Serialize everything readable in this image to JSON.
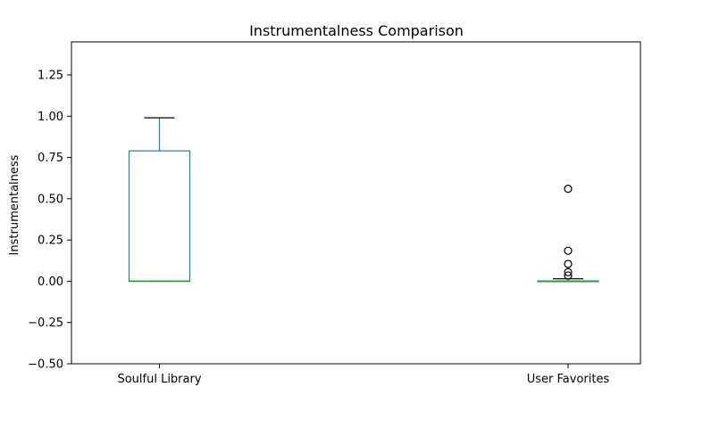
{
  "chart_data": {
    "type": "box",
    "title": "Instrumentalness Comparison",
    "xlabel": "",
    "ylabel": "Instrumentalness",
    "ylim": [
      -0.5,
      1.45
    ],
    "yticks": [
      -0.5,
      -0.25,
      0.0,
      0.25,
      0.5,
      0.75,
      1.0,
      1.25
    ],
    "ytick_labels": [
      "−0.50",
      "−0.25",
      "0.00",
      "0.25",
      "0.50",
      "0.75",
      "1.00",
      "1.25"
    ],
    "grid": false,
    "colors": {
      "box": "#1f77b4",
      "median": "#2ca02c",
      "whisker": "#1f77b4",
      "cap": "#000000",
      "flier": "#000000"
    },
    "categories": [
      "Soulful Library",
      "User Favorites"
    ],
    "boxes": [
      {
        "name": "Soulful Library",
        "whislo": 0.0,
        "q1": 0.0,
        "med": 0.0,
        "q3": 0.79,
        "whishi": 0.99,
        "fliers": []
      },
      {
        "name": "User Favorites",
        "whislo": 0.0,
        "q1": 0.0,
        "med": 0.0,
        "q3": 0.002,
        "whishi": 0.015,
        "fliers": [
          0.56,
          0.185,
          0.105,
          0.055,
          0.035
        ]
      }
    ]
  }
}
